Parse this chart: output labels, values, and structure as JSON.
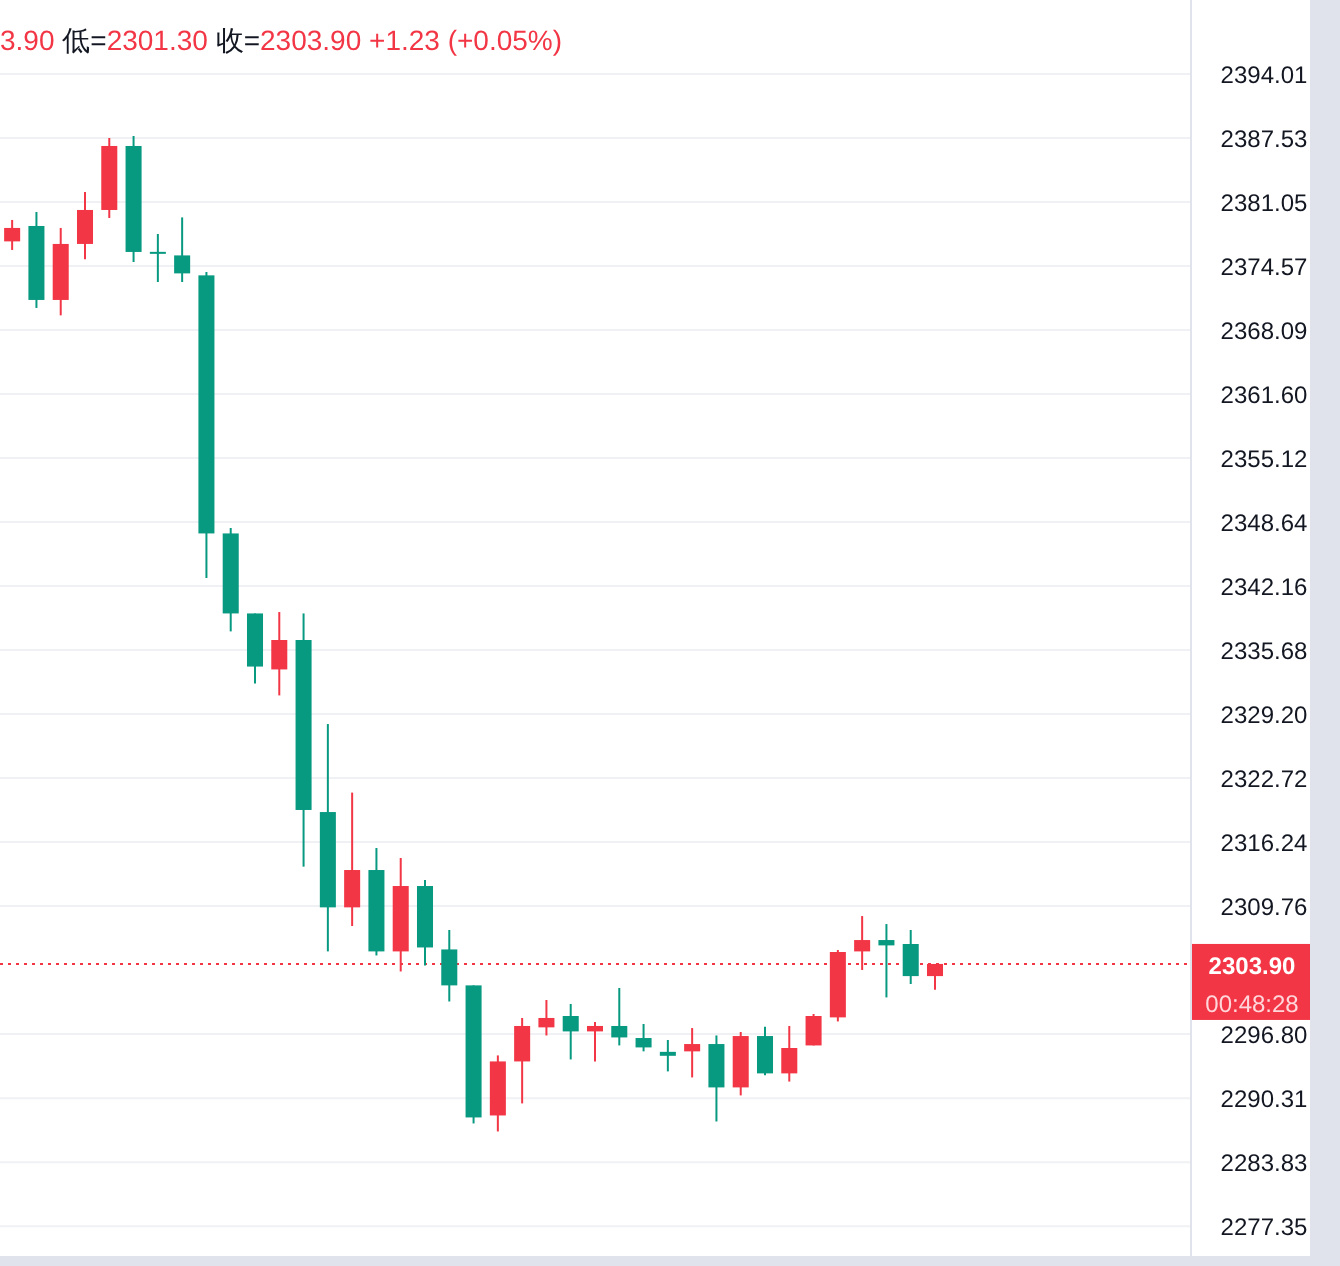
{
  "chart_data": {
    "type": "candlestick",
    "title": "3.90 低=2301.30 收=2303.90 +1.23 (+0.05%)",
    "categories": [
      null,
      null,
      null,
      null,
      null,
      null,
      null,
      null,
      null,
      null,
      null,
      null,
      null,
      null,
      null,
      null,
      null,
      null,
      null,
      null,
      null,
      null,
      null,
      null,
      null,
      null,
      null,
      null,
      null,
      null,
      null,
      null,
      null,
      null,
      null,
      null,
      null,
      null,
      null,
      null,
      null,
      null,
      null,
      null,
      null,
      null,
      null,
      null,
      null
    ],
    "ohlc": [
      [
        2377.06,
        2379.23,
        2376.19,
        2378.42
      ],
      [
        2378.62,
        2380.04,
        2370.32,
        2371.13
      ],
      [
        2371.13,
        2378.42,
        2369.57,
        2376.8
      ],
      [
        2376.8,
        2382.06,
        2375.24,
        2380.24
      ],
      [
        2380.24,
        2387.53,
        2379.43,
        2386.72
      ],
      [
        2386.72,
        2387.73,
        2374.97,
        2375.99
      ],
      [
        2376.0,
        2377.81,
        2372.95,
        2375.9
      ],
      [
        2375.64,
        2379.49,
        2372.95,
        2373.82
      ],
      [
        2373.62,
        2373.96,
        2342.98,
        2347.49
      ],
      [
        2347.49,
        2348.04,
        2337.57,
        2339.39
      ],
      [
        2339.39,
        2339.39,
        2332.3,
        2334.01
      ],
      [
        2333.72,
        2339.53,
        2331.09,
        2336.7
      ],
      [
        2336.7,
        2339.39,
        2313.75,
        2319.49
      ],
      [
        2319.28,
        2328.19,
        2305.17,
        2309.63
      ],
      [
        2309.63,
        2321.25,
        2307.74,
        2313.41
      ],
      [
        2313.41,
        2315.64,
        2304.76,
        2305.17
      ],
      [
        2305.17,
        2314.63,
        2303.14,
        2311.79
      ],
      [
        2311.79,
        2312.4,
        2303.75,
        2305.57
      ],
      [
        2305.37,
        2307.34,
        2300.1,
        2301.73
      ],
      [
        2301.73,
        2301.73,
        2287.75,
        2288.36
      ],
      [
        2288.56,
        2294.64,
        2286.94,
        2294.03
      ],
      [
        2294.03,
        2298.43,
        2289.78,
        2297.62
      ],
      [
        2297.48,
        2300.25,
        2296.66,
        2298.43
      ],
      [
        2298.63,
        2299.85,
        2294.23,
        2297.07
      ],
      [
        2297.07,
        2298.02,
        2294.03,
        2297.62
      ],
      [
        2297.62,
        2301.47,
        2295.65,
        2296.46
      ],
      [
        2296.4,
        2297.82,
        2295.05,
        2295.45
      ],
      [
        2295.0,
        2296.2,
        2293.02,
        2294.6
      ],
      [
        2295.05,
        2297.41,
        2292.41,
        2295.79
      ],
      [
        2295.79,
        2296.66,
        2287.95,
        2291.4
      ],
      [
        2291.4,
        2297.01,
        2290.59,
        2296.6
      ],
      [
        2296.6,
        2297.55,
        2292.62,
        2292.82
      ],
      [
        2292.82,
        2297.62,
        2291.99,
        2295.39
      ],
      [
        2295.65,
        2298.83,
        2295.65,
        2298.63
      ],
      [
        2298.49,
        2305.31,
        2298.08,
        2305.11
      ],
      [
        2305.17,
        2308.75,
        2303.29,
        2306.32
      ],
      [
        2306.32,
        2307.94,
        2300.51,
        2305.78
      ],
      [
        2305.92,
        2307.34,
        2301.87,
        2302.67
      ],
      [
        2302.67,
        2303.9,
        2301.3,
        2303.9
      ],
      null,
      null,
      null,
      null,
      null,
      null,
      null,
      null,
      null,
      null
    ],
    "ylim": [
      2274.33,
      2401.5
    ],
    "yticks": [
      2394.01,
      2387.53,
      2381.05,
      2374.57,
      2368.09,
      {
        "value": 2361.6,
        "label": "2361.60"
      },
      2355.12,
      2348.64,
      2342.16,
      2335.68,
      {
        "value": 2329.2,
        "label": "2329.20"
      },
      2322.72,
      2316.24,
      2309.76,
      {
        "value": 2296.8,
        "label": "2296.80"
      },
      2290.31,
      2283.83,
      2277.35
    ],
    "grid": "y",
    "ref_lines": [
      {
        "axis": "y",
        "value": 2303.9,
        "label": "2303.90\n00:48:28",
        "color": "#f23645",
        "line_style": "dotted"
      }
    ]
  }
}
